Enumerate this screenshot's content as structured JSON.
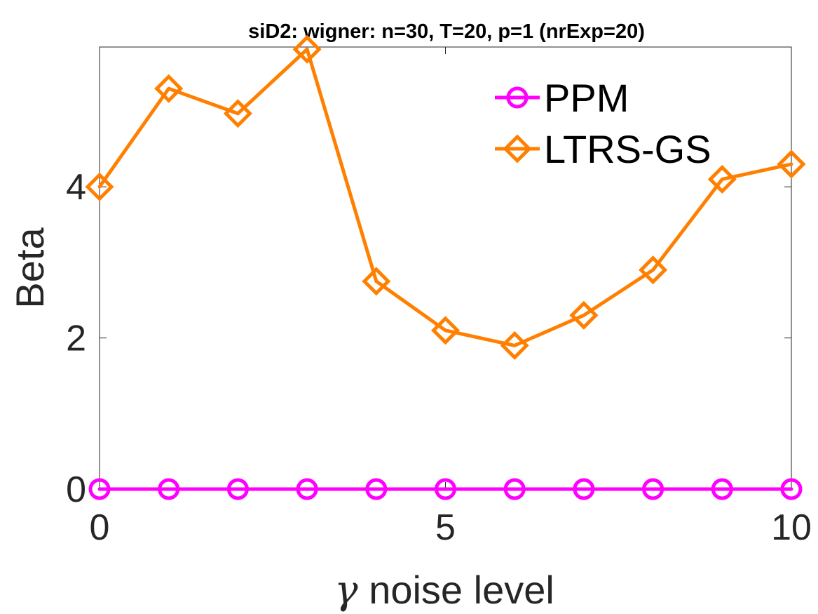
{
  "chart_data": {
    "type": "line",
    "title": "siD2: wigner: n=30, T=20, p=1 (nrExp=20)",
    "xlabel_symbol": "γ",
    "xlabel": "noise level",
    "ylabel": "Beta",
    "xlim": [
      0,
      10
    ],
    "ylim": [
      0,
      5.85
    ],
    "xticks": [
      0,
      5,
      10
    ],
    "yticks": [
      0,
      2,
      4
    ],
    "grid": false,
    "legend_position": "top-right",
    "x": [
      0,
      1,
      2,
      3,
      4,
      5,
      6,
      7,
      8,
      9,
      10
    ],
    "series": [
      {
        "name": "PPM",
        "color": "#ff00ff",
        "marker": "circle",
        "values": [
          0,
          0,
          0,
          0,
          0,
          0,
          0,
          0,
          0,
          0,
          0
        ]
      },
      {
        "name": "LTRS-GS",
        "color": "#ff8000",
        "marker": "diamond",
        "values": [
          4.0,
          5.3,
          4.97,
          5.82,
          2.75,
          2.1,
          1.9,
          2.3,
          2.9,
          4.1,
          4.3
        ]
      }
    ]
  }
}
